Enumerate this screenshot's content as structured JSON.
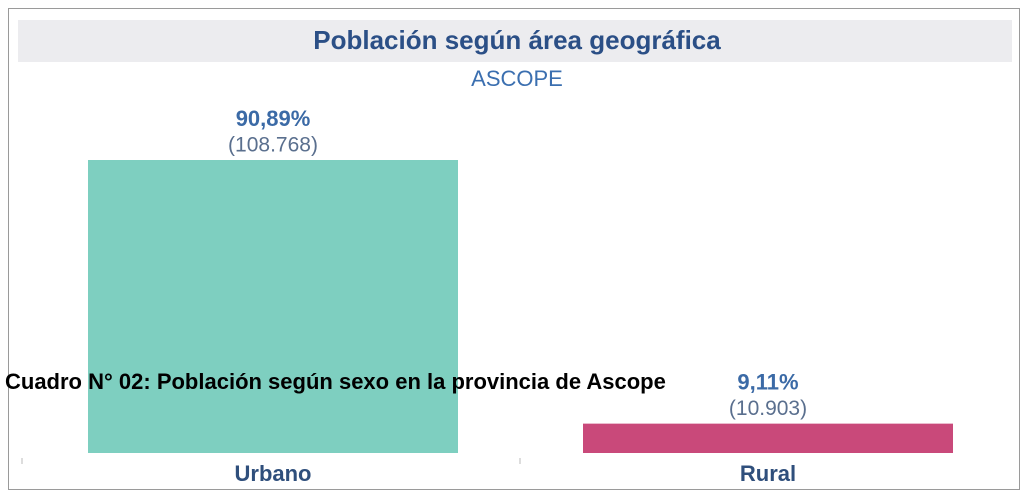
{
  "chart_data": {
    "type": "bar",
    "title": "Población según área geográfica",
    "subtitle": "ASCOPE",
    "categories": [
      "Urbano",
      "Rural"
    ],
    "values": [
      90.89,
      9.11
    ],
    "value_labels": [
      "90,89%",
      "9,11%"
    ],
    "counts": [
      108768,
      10903
    ],
    "count_labels": [
      "(108.768)",
      "(10.903)"
    ],
    "colors": [
      "#7ecfc0",
      "#c9497a"
    ],
    "caption": "Cuadro N° 02: Población según sexo en la provincia de Ascope"
  }
}
